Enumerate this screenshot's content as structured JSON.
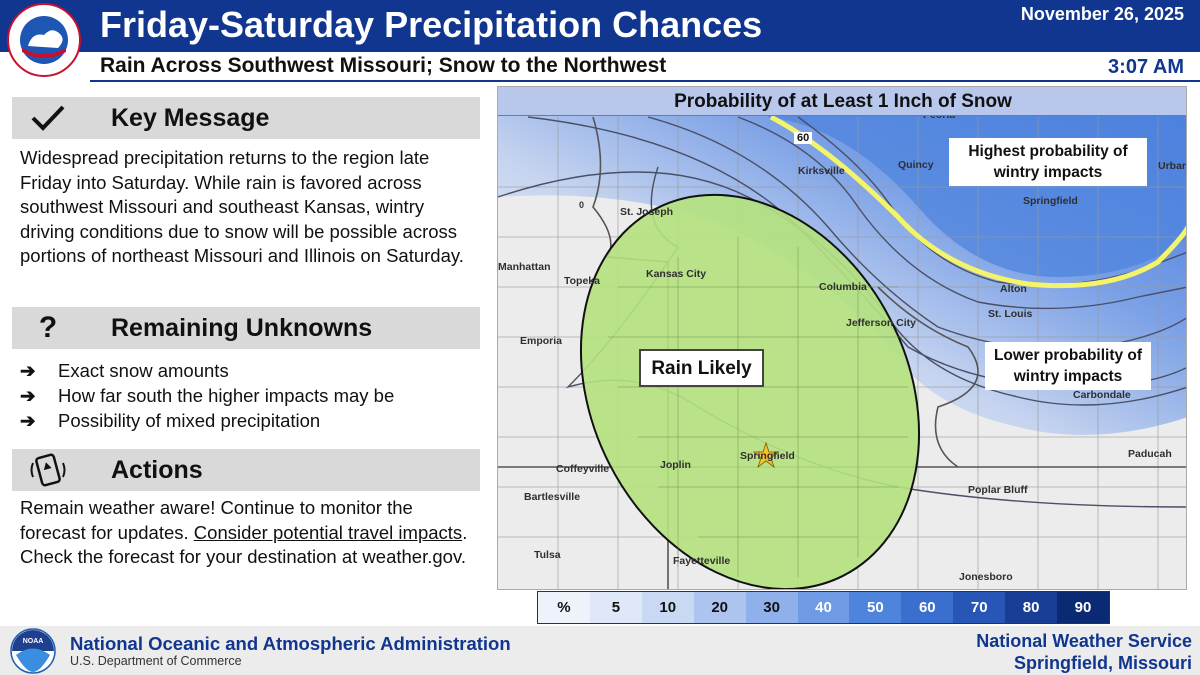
{
  "header": {
    "title": "Friday-Saturday Precipitation Chances",
    "date": "November 26, 2025",
    "time": "3:07 AM",
    "subtitle": "Rain Across Southwest Missouri; Snow to the Northwest",
    "logo_text": "NATIONAL WEATHER SERVICE"
  },
  "key_message": {
    "icon": "checkmark-icon",
    "title": "Key Message",
    "text": "Widespread precipitation returns to the region late Friday into Saturday. While rain is favored across southwest Missouri and southeast Kansas, wintry driving conditions due to snow will be possible across portions of northeast Missouri and Illinois on Saturday."
  },
  "unknowns": {
    "icon": "question-mark-icon",
    "title": "Remaining Unknowns",
    "items": [
      "Exact snow amounts",
      "How far south the higher impacts may be",
      "Possibility of mixed precipitation"
    ]
  },
  "actions": {
    "icon": "phone-alert-icon",
    "title": "Actions",
    "text_before": "Remain weather aware! Continue to monitor the forecast for updates. ",
    "link_text": "Consider potential travel impacts",
    "text_after": ". Check the forecast for your destination at weather.gov."
  },
  "map": {
    "title": "Probability of at Least 1 Inch of Snow",
    "rain_label": "Rain Likely",
    "high_label": "Highest probability of wintry impacts",
    "low_label": "Lower probability of wintry impacts",
    "contour_labels": [
      "60",
      "0"
    ],
    "cities": [
      "Peoria",
      "Kirksville",
      "Quincy",
      "Urbana",
      "St. Joseph",
      "Springfield",
      "Manhattan",
      "Topeka",
      "Kansas City",
      "Columbia",
      "Alton",
      "St. Louis",
      "Jefferson City",
      "Emporia",
      "Carbondale",
      "Joplin",
      "Coffeyville",
      "Paducah",
      "Poplar Bluff",
      "Bartlesville",
      "Tulsa",
      "Fayetteville",
      "Jonesboro",
      "Springfield"
    ],
    "colors": {
      "rain_fill": "#b5e27e",
      "snow_high": "#4a7fe0",
      "snow_low": "#dfe6f3",
      "contour_highlight": "#f4f46a"
    }
  },
  "legend": {
    "unit": "%",
    "values": [
      "5",
      "10",
      "20",
      "30",
      "40",
      "50",
      "60",
      "70",
      "80",
      "90"
    ],
    "colors": [
      "#eef3fb",
      "#dfe8f8",
      "#c9d8f3",
      "#adc4ee",
      "#8fb0ea",
      "#6f9ae4",
      "#4f84dd",
      "#3a6fd0",
      "#2756b6",
      "#183f95",
      "#0b2a74"
    ]
  },
  "footer": {
    "agency": "National Oceanic and Atmospheric Administration",
    "department": "U.S. Department of Commerce",
    "service": "National Weather Service",
    "office": "Springfield, Missouri",
    "logo_text": "NOAA"
  }
}
